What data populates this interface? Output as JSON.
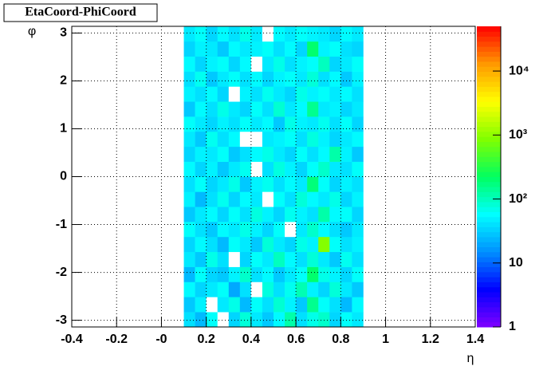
{
  "chart_data": {
    "type": "heatmap",
    "title": "EtaCoord-PhiCoord",
    "x_label": "η",
    "y_label": "φ",
    "xlim": [
      -0.4,
      1.4
    ],
    "xticks": [
      -0.4,
      -0.2,
      {
        "value": 0,
        "label": "-0"
      },
      0.2,
      0.4,
      0.6,
      0.8,
      1,
      1.2,
      1.4
    ],
    "ylim": [
      -3.14,
      3.14
    ],
    "yticks": [
      -3,
      -2,
      -1,
      0,
      1,
      2,
      3
    ],
    "zlim": [
      1,
      50000
    ],
    "log_z": true,
    "zticks": [
      1,
      10,
      {
        "value": 100,
        "label": "10²"
      },
      {
        "value": 1000,
        "label": "10³"
      },
      {
        "value": 10000,
        "label": "10⁴"
      }
    ],
    "grid": true,
    "palette": [
      "#8000ff",
      "#0000ff",
      "#0090ff",
      "#00ffff",
      "#00ff60",
      "#80ff00",
      "#ffff00",
      "#ff9900",
      "#ff0000"
    ],
    "xbins": [
      0.1,
      0.15,
      0.2,
      0.25,
      0.3,
      0.35,
      0.4,
      0.45,
      0.5,
      0.55,
      0.6,
      0.65,
      0.7,
      0.75,
      0.8,
      0.85,
      0.9
    ],
    "ybins": [
      -3.14,
      -2.826,
      -2.512,
      -2.198,
      -1.884,
      -1.57,
      -1.256,
      -0.942,
      -0.628,
      -0.314,
      0,
      0.314,
      0.628,
      0.942,
      1.256,
      1.57,
      1.884,
      2.198,
      2.512,
      2.826,
      3.14
    ],
    "z": [
      [
        40,
        25,
        60,
        0,
        35,
        80,
        45,
        30,
        55,
        120,
        40,
        70,
        90,
        35,
        60,
        45
      ],
      [
        30,
        50,
        0,
        45,
        70,
        25,
        60,
        40,
        85,
        50,
        30,
        150,
        60,
        40,
        25,
        55
      ],
      [
        55,
        35,
        45,
        60,
        20,
        40,
        0,
        75,
        40,
        65,
        110,
        50,
        35,
        80,
        45,
        30
      ],
      [
        25,
        60,
        35,
        30,
        50,
        90,
        40,
        55,
        30,
        45,
        60,
        200,
        70,
        50,
        35,
        60
      ],
      [
        45,
        30,
        70,
        40,
        0,
        35,
        60,
        45,
        100,
        55,
        40,
        80,
        45,
        30,
        65,
        40
      ],
      [
        35,
        55,
        40,
        25,
        60,
        45,
        30,
        80,
        45,
        35,
        70,
        50,
        900,
        60,
        40,
        50
      ],
      [
        60,
        40,
        30,
        55,
        45,
        70,
        50,
        35,
        60,
        0,
        45,
        90,
        55,
        40,
        30,
        45
      ],
      [
        30,
        45,
        55,
        35,
        60,
        40,
        75,
        50,
        35,
        65,
        50,
        40,
        120,
        55,
        60,
        35
      ],
      [
        50,
        25,
        40,
        65,
        35,
        55,
        45,
        0,
        60,
        40,
        80,
        55,
        45,
        70,
        35,
        50
      ],
      [
        40,
        60,
        35,
        45,
        70,
        30,
        50,
        65,
        40,
        55,
        45,
        180,
        60,
        35,
        50,
        40
      ],
      [
        55,
        35,
        50,
        30,
        45,
        65,
        0,
        40,
        75,
        50,
        35,
        60,
        90,
        45,
        40,
        60
      ],
      [
        35,
        50,
        45,
        60,
        30,
        40,
        55,
        70,
        45,
        35,
        60,
        40,
        55,
        120,
        50,
        30
      ],
      [
        45,
        30,
        65,
        40,
        55,
        0,
        0,
        45,
        50,
        60,
        40,
        75,
        50,
        35,
        45,
        55
      ],
      [
        60,
        45,
        35,
        50,
        40,
        60,
        45,
        55,
        30,
        70,
        50,
        45,
        65,
        40,
        60,
        35
      ],
      [
        30,
        55,
        40,
        70,
        45,
        35,
        60,
        40,
        85,
        45,
        55,
        150,
        45,
        50,
        35,
        45
      ],
      [
        50,
        40,
        55,
        35,
        0,
        50,
        40,
        65,
        45,
        35,
        70,
        50,
        60,
        45,
        55,
        40
      ],
      [
        40,
        65,
        30,
        45,
        60,
        40,
        55,
        35,
        50,
        60,
        45,
        80,
        40,
        55,
        30,
        50
      ],
      [
        55,
        35,
        50,
        60,
        35,
        55,
        0,
        45,
        70,
        40,
        50,
        60,
        100,
        35,
        45,
        60
      ],
      [
        35,
        50,
        45,
        30,
        55,
        45,
        50,
        60,
        40,
        55,
        35,
        200,
        50,
        60,
        40,
        35
      ],
      [
        45,
        60,
        35,
        55,
        40,
        70,
        45,
        0,
        55,
        45,
        60,
        50,
        45,
        35,
        55,
        45
      ]
    ]
  }
}
